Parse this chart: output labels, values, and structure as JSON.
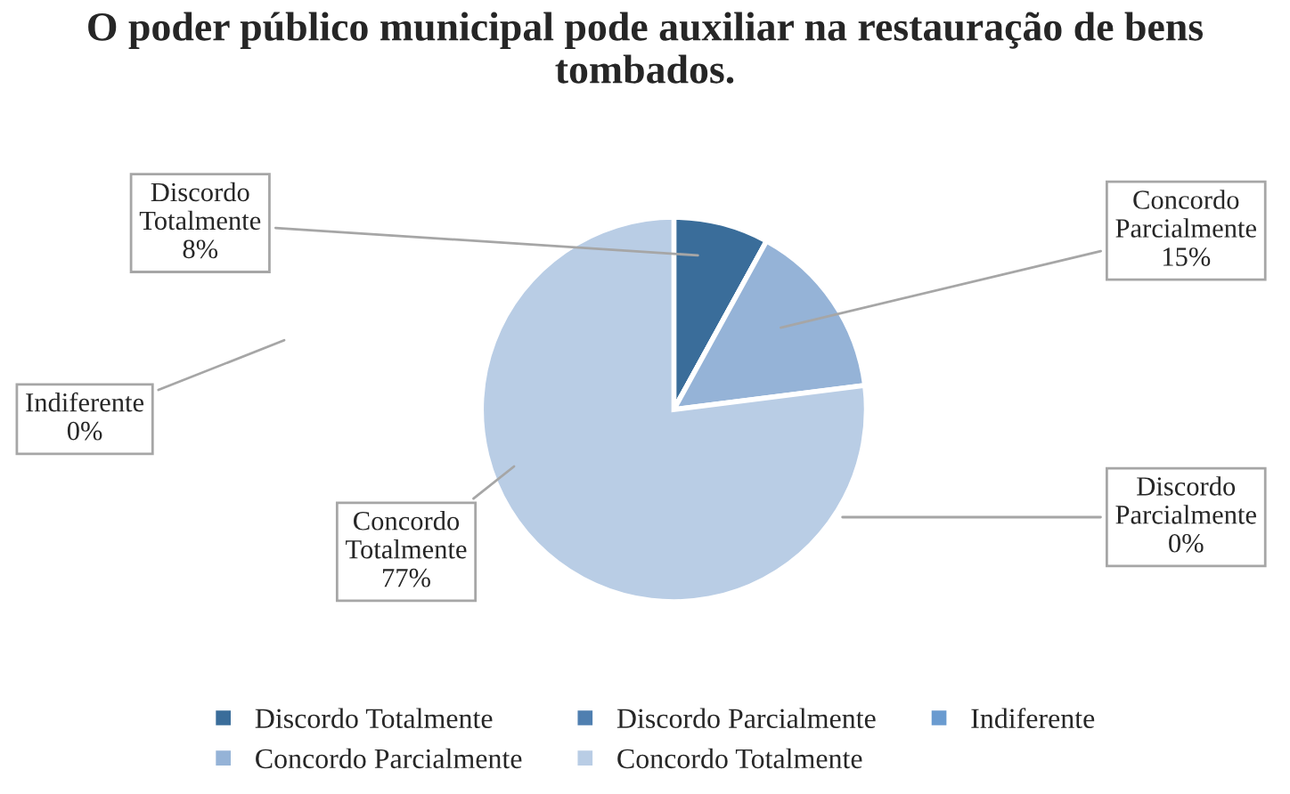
{
  "chart_data": {
    "type": "pie",
    "title": "O poder público municipal pode auxiliar na restauração de bens tombados.",
    "categories": [
      "Discordo Totalmente",
      "Discordo Parcialmente",
      "Indiferente",
      "Concordo Parcialmente",
      "Concordo Totalmente"
    ],
    "values": [
      8,
      0,
      0,
      15,
      77
    ],
    "colors": [
      "#3a6d9a",
      "#4f7fb0",
      "#6a9bd0",
      "#95b3d7",
      "#b9cde5"
    ],
    "value_labels": [
      "8%",
      "0%",
      "0%",
      "15%",
      "77%"
    ],
    "legend": "bottom"
  }
}
